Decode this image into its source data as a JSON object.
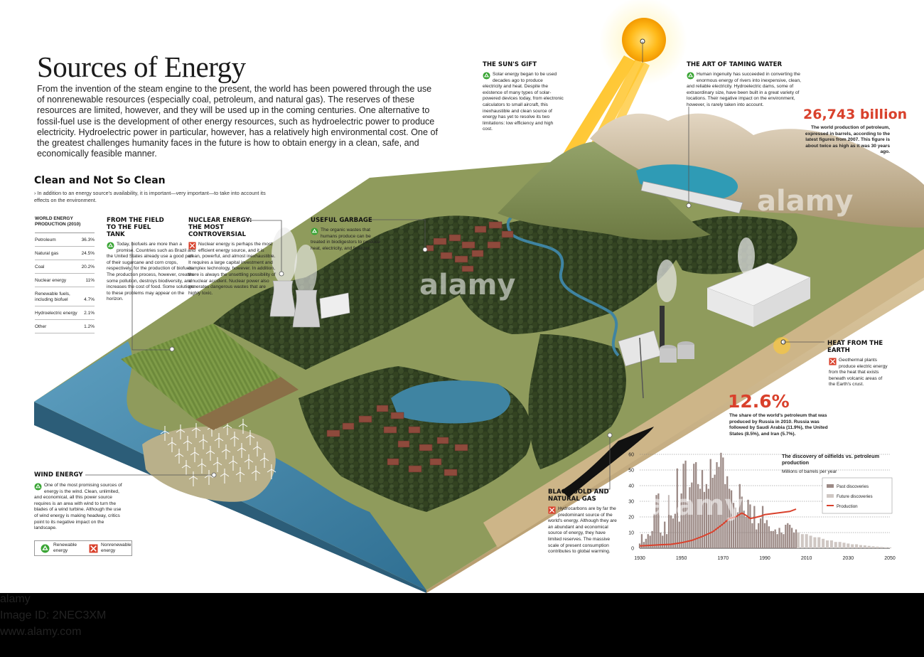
{
  "title": "Sources of Energy",
  "intro": "From the invention of the steam engine to the present, the world has been powered through the use of nonrenewable resources (especially coal, petroleum, and natural gas). The reserves of these resources are limited, however, and they will be used up in the coming centuries. One alternative to fossil-fuel use is the development of other energy resources, such as hydroelectric power to produce electricity. Hydroelectric power in particular, however, has a relatively high environmental cost. One of the greatest challenges humanity faces in the future is how to obtain energy in a clean, safe, and economically feasible manner.",
  "section": {
    "title": "Clean and Not So Clean",
    "subtitle": "› In addition to an energy source's availability, it is important—very important—to take into account its effects on the environment."
  },
  "production_table": {
    "title": "WORLD ENERGY PRODUCTION (2010)",
    "rows": [
      {
        "name": "Petroleum",
        "value": "36.3%"
      },
      {
        "name": "Natural gas",
        "value": "24.5%"
      },
      {
        "name": "Coal",
        "value": "20.2%"
      },
      {
        "name": "Nuclear energy",
        "value": "11%"
      },
      {
        "name": "Renewable fuels, including biofuel",
        "value": "4.7%"
      },
      {
        "name": "Hydroelectric energy",
        "value": "2.1%"
      },
      {
        "name": "Other",
        "value": "1.2%"
      }
    ]
  },
  "callouts": {
    "field": {
      "title": "FROM THE FIELD TO THE FUEL TANK",
      "text": "Today, biofuels are more than a promise. Countries such as Brazil and the United States already use a good part of their sugarcane and corn crops, respectively, for the production of biofuels. The production process, however, creates some pollution, destroys biodiversity, and increases the cost of food. Some solutions to these problems may appear on the horizon."
    },
    "nuclear": {
      "title": "NUCLEAR ENERGY: THE MOST CONTROVERSIAL",
      "text": "Nuclear energy is perhaps the most efficient energy source, and it is clean, powerful, and almost inexhaustible. It requires a large capital investment and complex technology, however. In addition, there is always the unsettling possibility of a nuclear accident. Nuclear power also generates dangerous wastes that are highly toxic."
    },
    "garbage": {
      "title": "USEFUL GARBAGE",
      "text": "The organic wastes that humans produce can be treated in biodigestors to produce heat, electricity, and fertilizer."
    },
    "sun": {
      "title": "THE SUN'S GIFT",
      "text": "Solar energy began to be used decades ago to produce electricity and heat. Despite the existence of many types of solar-powered devices today, from electronic calculators to small aircraft, this inexhaustible and clean source of energy has yet to resolve its two limitations: low efficiency and high cost."
    },
    "water": {
      "title": "THE ART OF TAMING WATER",
      "text": "Human ingenuity has succeeded in converting the enormous energy of rivers into inexpensive, clean, and reliable electricity. Hydroelectric dams, some of extraordinary size, have been built in a great variety of locations. Their negative impact on the environment, however, is rarely taken into account."
    },
    "geothermal": {
      "title": "HEAT FROM THE EARTH",
      "text": "Geothermal plants produce electric energy from the heat that exists beneath volcanic areas of the Earth's crust."
    },
    "oil": {
      "title": "BLACK GOLD AND NATURAL GAS",
      "text": "Hydrocarbons are by far the predominant source of the world's energy. Although they are an abundant and economical source of energy, they have limited reserves. The massive scale of present consumption contributes to global warming."
    },
    "wind": {
      "title": "WIND ENERGY",
      "text": "One of the most promising sources of energy is the wind. Clean, unlimited, and economical, all this power source requires is an area with wind to turn the blades of a wind turbine. Although the use of wind energy is making headway, critics point to its negative impact on the landscape."
    }
  },
  "stats": {
    "petroleum_value": "26,743 billion",
    "petroleum_text": "The world production of petroleum, expressed in barrels, according to the latest figures from 2007. This figure is about twice as high as it was 30 years ago.",
    "russia_value": "12.6%",
    "russia_text": "The share of the world's petroleum that was produced by Russia in 2010. Russia was followed by Saudi Arabia (11.9%), the United States (8.5%), and Iran (5.7%)."
  },
  "legend": {
    "renewable": "Renewable energy",
    "nonrenewable": "Nonrenewable energy"
  },
  "colors": {
    "renewable": "#3aa535",
    "nonrenewable": "#d9412c",
    "accent": "#d9412c",
    "water": "#3f8aa6",
    "forest": "#2a3a1c"
  },
  "chart_data": {
    "type": "bar",
    "title": "The discovery of oilfields vs. petroleum production",
    "ylabel": "Millions of barrels per year",
    "ylim": [
      0,
      60
    ],
    "yticks": [
      0,
      10,
      20,
      30,
      40,
      50,
      60
    ],
    "xticks": [
      1930,
      1950,
      1970,
      1990,
      2010,
      2030,
      2050
    ],
    "xlim": [
      1930,
      2050
    ],
    "grid": true,
    "legend_position": "right",
    "series": [
      {
        "name": "Past discoveries",
        "type": "bar",
        "color": "#9c8a86",
        "x": [
          1930,
          1931,
          1932,
          1933,
          1934,
          1935,
          1936,
          1937,
          1938,
          1939,
          1940,
          1941,
          1942,
          1943,
          1944,
          1945,
          1946,
          1947,
          1948,
          1949,
          1950,
          1951,
          1952,
          1953,
          1954,
          1955,
          1956,
          1957,
          1958,
          1959,
          1960,
          1961,
          1962,
          1963,
          1964,
          1965,
          1966,
          1967,
          1968,
          1969,
          1970,
          1971,
          1972,
          1973,
          1974,
          1975,
          1976,
          1977,
          1978,
          1979,
          1980,
          1981,
          1982,
          1983,
          1984,
          1985,
          1986,
          1987,
          1988,
          1989,
          1990,
          1991,
          1992,
          1993,
          1994,
          1995,
          1996,
          1997,
          1998,
          1999,
          2000,
          2001,
          2002,
          2003,
          2004,
          2005
        ],
        "values": [
          3,
          9,
          4,
          6,
          9,
          8,
          11,
          22,
          34,
          35,
          10,
          8,
          17,
          9,
          34,
          21,
          19,
          22,
          51,
          17,
          35,
          54,
          56,
          30,
          39,
          42,
          54,
          55,
          41,
          38,
          50,
          36,
          41,
          38,
          57,
          45,
          47,
          55,
          52,
          61,
          58,
          41,
          46,
          38,
          37,
          29,
          26,
          23,
          41,
          33,
          24,
          20,
          31,
          28,
          16,
          27,
          12,
          16,
          19,
          27,
          16,
          18,
          14,
          11,
          11,
          12,
          9,
          13,
          10,
          9,
          15,
          16,
          15,
          13,
          10,
          12
        ]
      },
      {
        "name": "Future discoveries",
        "type": "bar",
        "color": "#cfc7c3",
        "x": [
          2006,
          2008,
          2010,
          2012,
          2014,
          2016,
          2018,
          2020,
          2022,
          2024,
          2026,
          2028,
          2030,
          2032,
          2034,
          2036,
          2038,
          2040,
          2042,
          2044,
          2046,
          2048,
          2050
        ],
        "values": [
          10,
          9,
          9,
          8,
          7,
          7,
          6,
          5,
          5,
          4,
          4,
          3.5,
          3,
          2.5,
          2.5,
          2,
          1.8,
          1.5,
          1.2,
          1,
          0.8,
          0.6,
          0.5
        ]
      },
      {
        "name": "Production",
        "type": "line",
        "color": "#d9412c",
        "x": [
          1930,
          1935,
          1940,
          1945,
          1950,
          1955,
          1960,
          1965,
          1970,
          1973,
          1976,
          1979,
          1981,
          1983,
          1985,
          1988,
          1990,
          1993,
          1996,
          1999,
          2002,
          2005
        ],
        "values": [
          1.5,
          1.8,
          2.2,
          2.5,
          3.5,
          5,
          7.5,
          10.5,
          15.5,
          19,
          20,
          22.5,
          21,
          19,
          19.5,
          20.5,
          21.5,
          22,
          22.5,
          23,
          23.5,
          25
        ]
      }
    ]
  },
  "watermarks": {
    "mark": "alamy"
  },
  "footer": {
    "logo": "alamy",
    "image_id_label": "Image ID: 2NEC3XM",
    "site": "www.alamy.com"
  }
}
